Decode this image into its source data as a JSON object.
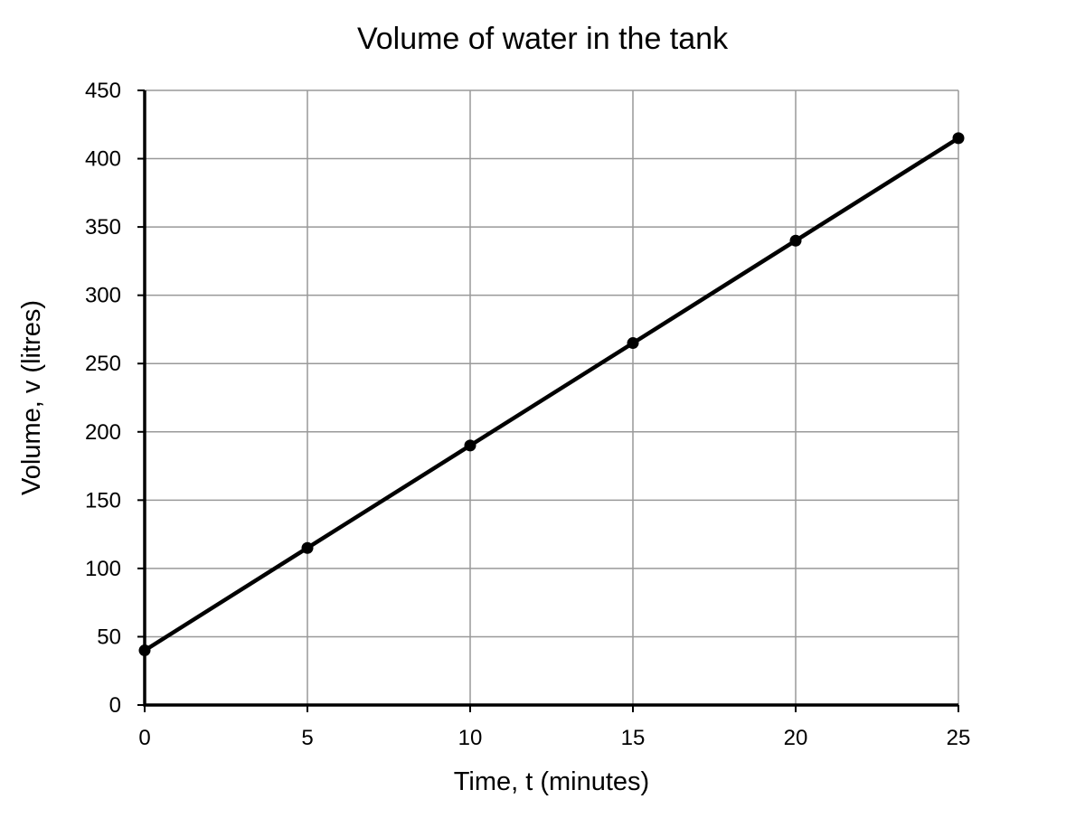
{
  "chart_data": {
    "type": "line",
    "title": "Volume of water in the tank",
    "xlabel": "Time, t (minutes)",
    "ylabel": "Volume, v (litres)",
    "xlim": [
      0,
      25
    ],
    "ylim": [
      0,
      450
    ],
    "x_ticks": [
      "0",
      "5",
      "10",
      "15",
      "20",
      "25"
    ],
    "y_ticks": [
      "0",
      "50",
      "100",
      "150",
      "200",
      "250",
      "300",
      "350",
      "400",
      "450"
    ],
    "grid": true,
    "legend": "none",
    "line_color": "#000000",
    "grid_color": "#999999",
    "series": [
      {
        "x": [
          0,
          5,
          10,
          15,
          20,
          25
        ],
        "values": [
          40,
          115,
          190,
          265,
          340,
          415
        ]
      }
    ]
  }
}
